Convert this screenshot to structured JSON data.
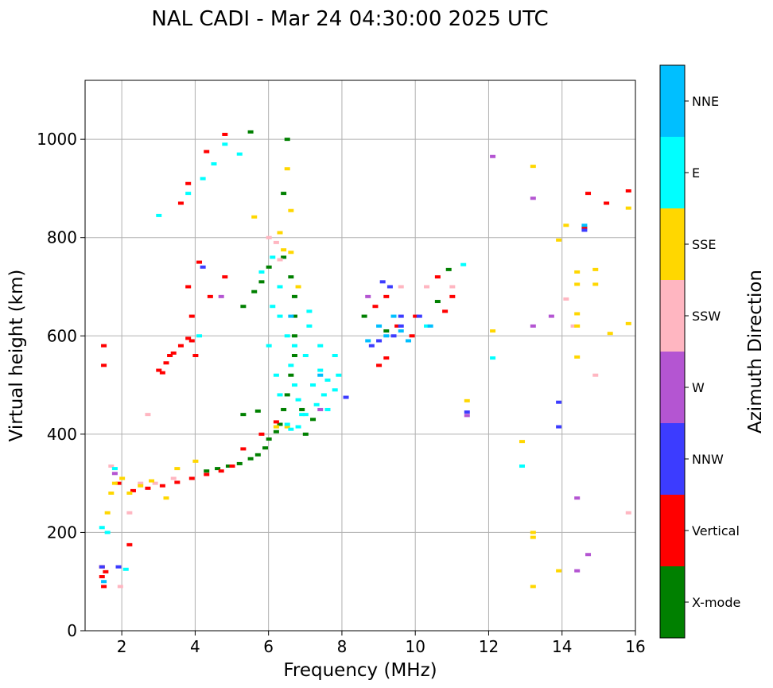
{
  "chart_data": {
    "type": "scatter",
    "title": "NAL CADI - Mar 24 04:30:00 2025 UTC",
    "xlabel": "Frequency (MHz)",
    "ylabel": "Virtual height (km)",
    "xlim": [
      1,
      16
    ],
    "ylim": [
      0,
      1120
    ],
    "xticks": [
      2,
      4,
      6,
      8,
      10,
      12,
      14,
      16
    ],
    "yticks": [
      0,
      200,
      400,
      600,
      800,
      1000
    ],
    "grid": true,
    "colorbar": {
      "label": "Azimuth Direction",
      "categories": [
        {
          "name": "X-mode",
          "color": "#008000"
        },
        {
          "name": "Vertical",
          "color": "#ff0000"
        },
        {
          "name": "NNW",
          "color": "#3c3cff"
        },
        {
          "name": "W",
          "color": "#b455d2"
        },
        {
          "name": "SSW",
          "color": "#ffb6c1"
        },
        {
          "name": "SSE",
          "color": "#ffd700"
        },
        {
          "name": "E",
          "color": "#00ffff"
        },
        {
          "name": "NNE",
          "color": "#00bfff"
        }
      ]
    },
    "series": [
      {
        "name": "X-mode",
        "color": "#008000",
        "points": [
          [
            4.3,
            325
          ],
          [
            4.6,
            330
          ],
          [
            4.9,
            335
          ],
          [
            5.2,
            340
          ],
          [
            5.5,
            350
          ],
          [
            5.7,
            358
          ],
          [
            5.9,
            372
          ],
          [
            6.0,
            390
          ],
          [
            6.2,
            405
          ],
          [
            6.3,
            420
          ],
          [
            6.4,
            450
          ],
          [
            6.5,
            480
          ],
          [
            6.6,
            520
          ],
          [
            6.7,
            560
          ],
          [
            6.7,
            600
          ],
          [
            6.7,
            640
          ],
          [
            6.7,
            680
          ],
          [
            6.6,
            720
          ],
          [
            6.4,
            760
          ],
          [
            6.5,
            1000
          ],
          [
            6.4,
            890
          ],
          [
            5.5,
            1015
          ],
          [
            6.9,
            450
          ],
          [
            7.0,
            400
          ],
          [
            7.2,
            430
          ],
          [
            5.3,
            660
          ],
          [
            5.6,
            690
          ],
          [
            5.8,
            710
          ],
          [
            6.0,
            740
          ],
          [
            10.6,
            670
          ],
          [
            10.9,
            735
          ],
          [
            9.2,
            610
          ],
          [
            8.6,
            640
          ],
          [
            5.7,
            447
          ],
          [
            5.3,
            440
          ]
        ]
      },
      {
        "name": "Vertical",
        "color": "#ff0000",
        "points": [
          [
            1.5,
            580
          ],
          [
            1.5,
            540
          ],
          [
            1.45,
            130
          ],
          [
            1.45,
            110
          ],
          [
            1.5,
            90
          ],
          [
            1.55,
            120
          ],
          [
            1.9,
            300
          ],
          [
            2.3,
            285
          ],
          [
            2.7,
            290
          ],
          [
            3.1,
            295
          ],
          [
            3.5,
            302
          ],
          [
            3.9,
            310
          ],
          [
            4.3,
            318
          ],
          [
            4.7,
            325
          ],
          [
            5.0,
            335
          ],
          [
            3.0,
            530
          ],
          [
            3.2,
            545
          ],
          [
            3.4,
            565
          ],
          [
            3.6,
            580
          ],
          [
            3.8,
            595
          ],
          [
            3.9,
            640
          ],
          [
            4.4,
            680
          ],
          [
            4.8,
            720
          ],
          [
            4.8,
            1010
          ],
          [
            4.3,
            975
          ],
          [
            3.8,
            910
          ],
          [
            3.6,
            870
          ],
          [
            3.8,
            700
          ],
          [
            4.1,
            750
          ],
          [
            3.9,
            590
          ],
          [
            3.3,
            560
          ],
          [
            3.1,
            525
          ],
          [
            9.0,
            540
          ],
          [
            9.2,
            555
          ],
          [
            8.9,
            660
          ],
          [
            9.2,
            680
          ],
          [
            9.5,
            620
          ],
          [
            9.9,
            600
          ],
          [
            10.0,
            640
          ],
          [
            10.6,
            720
          ],
          [
            10.8,
            650
          ],
          [
            11.0,
            680
          ],
          [
            14.6,
            820
          ],
          [
            14.7,
            890
          ],
          [
            15.2,
            870
          ],
          [
            15.8,
            895
          ],
          [
            2.2,
            175
          ],
          [
            4.0,
            560
          ],
          [
            5.3,
            370
          ],
          [
            5.8,
            400
          ],
          [
            6.2,
            425
          ]
        ]
      },
      {
        "name": "NNW",
        "color": "#3c3cff",
        "points": [
          [
            1.45,
            130
          ],
          [
            1.9,
            130
          ],
          [
            8.1,
            475
          ],
          [
            8.8,
            580
          ],
          [
            9.0,
            590
          ],
          [
            9.1,
            710
          ],
          [
            9.3,
            700
          ],
          [
            9.6,
            640
          ],
          [
            9.6,
            620
          ],
          [
            11.4,
            445
          ],
          [
            13.9,
            465
          ],
          [
            13.9,
            415
          ],
          [
            14.6,
            815
          ],
          [
            4.2,
            740
          ],
          [
            10.1,
            640
          ],
          [
            9.4,
            600
          ]
        ]
      },
      {
        "name": "W",
        "color": "#b455d2",
        "points": [
          [
            12.1,
            965
          ],
          [
            13.2,
            620
          ],
          [
            13.2,
            880
          ],
          [
            13.7,
            640
          ],
          [
            14.4,
            270
          ],
          [
            14.4,
            122
          ],
          [
            14.7,
            155
          ],
          [
            11.4,
            438
          ],
          [
            7.4,
            450
          ],
          [
            4.7,
            680
          ],
          [
            1.8,
            320
          ],
          [
            8.7,
            680
          ]
        ]
      },
      {
        "name": "SSW",
        "color": "#ffb6c1",
        "points": [
          [
            1.7,
            335
          ],
          [
            2.5,
            300
          ],
          [
            2.9,
            300
          ],
          [
            3.4,
            310
          ],
          [
            2.7,
            440
          ],
          [
            6.2,
            790
          ],
          [
            6.0,
            800
          ],
          [
            6.3,
            755
          ],
          [
            14.1,
            675
          ],
          [
            14.3,
            620
          ],
          [
            14.9,
            520
          ],
          [
            15.8,
            240
          ],
          [
            1.95,
            90
          ],
          [
            2.2,
            240
          ],
          [
            11.0,
            700
          ],
          [
            10.3,
            700
          ],
          [
            9.6,
            700
          ]
        ]
      },
      {
        "name": "SSE",
        "color": "#ffd700",
        "points": [
          [
            1.6,
            240
          ],
          [
            1.7,
            280
          ],
          [
            1.8,
            300
          ],
          [
            2.0,
            310
          ],
          [
            2.2,
            280
          ],
          [
            2.5,
            295
          ],
          [
            2.8,
            305
          ],
          [
            3.2,
            270
          ],
          [
            3.5,
            330
          ],
          [
            4.0,
            345
          ],
          [
            5.6,
            842
          ],
          [
            6.3,
            810
          ],
          [
            6.4,
            775
          ],
          [
            6.6,
            855
          ],
          [
            6.6,
            770
          ],
          [
            6.8,
            700
          ],
          [
            6.5,
            940
          ],
          [
            12.1,
            610
          ],
          [
            12.9,
            385
          ],
          [
            13.2,
            200
          ],
          [
            13.2,
            190
          ],
          [
            13.2,
            90
          ],
          [
            13.2,
            945
          ],
          [
            13.9,
            122
          ],
          [
            13.9,
            795
          ],
          [
            14.1,
            825
          ],
          [
            14.4,
            730
          ],
          [
            14.4,
            705
          ],
          [
            14.4,
            645
          ],
          [
            14.4,
            620
          ],
          [
            14.4,
            557
          ],
          [
            14.9,
            735
          ],
          [
            14.9,
            705
          ],
          [
            15.3,
            605
          ],
          [
            15.8,
            860
          ],
          [
            15.8,
            625
          ],
          [
            11.4,
            468
          ],
          [
            6.2,
            415
          ],
          [
            6.5,
            415
          ]
        ]
      },
      {
        "name": "E",
        "color": "#00ffff",
        "points": [
          [
            1.45,
            210
          ],
          [
            1.6,
            200
          ],
          [
            1.8,
            330
          ],
          [
            2.1,
            125
          ],
          [
            3.0,
            845
          ],
          [
            3.8,
            890
          ],
          [
            4.2,
            920
          ],
          [
            4.5,
            950
          ],
          [
            4.8,
            990
          ],
          [
            5.2,
            970
          ],
          [
            6.1,
            660
          ],
          [
            6.3,
            640
          ],
          [
            6.5,
            600
          ],
          [
            6.6,
            540
          ],
          [
            6.7,
            500
          ],
          [
            6.8,
            470
          ],
          [
            6.9,
            440
          ],
          [
            7.0,
            560
          ],
          [
            7.1,
            620
          ],
          [
            7.2,
            500
          ],
          [
            7.3,
            460
          ],
          [
            7.4,
            530
          ],
          [
            7.5,
            480
          ],
          [
            7.6,
            510
          ],
          [
            7.6,
            450
          ],
          [
            7.8,
            560
          ],
          [
            7.9,
            520
          ],
          [
            7.8,
            490
          ],
          [
            6.3,
            480
          ],
          [
            6.2,
            520
          ],
          [
            6.5,
            420
          ],
          [
            6.6,
            410
          ],
          [
            6.8,
            415
          ],
          [
            7.0,
            440
          ],
          [
            10.3,
            620
          ],
          [
            11.3,
            745
          ],
          [
            12.1,
            555
          ],
          [
            12.9,
            335
          ],
          [
            6.7,
            580
          ],
          [
            7.1,
            650
          ],
          [
            7.4,
            580
          ],
          [
            5.8,
            730
          ],
          [
            6.1,
            760
          ],
          [
            6.3,
            700
          ],
          [
            6.0,
            580
          ],
          [
            4.1,
            600
          ]
        ]
      },
      {
        "name": "NNE",
        "color": "#00bfff",
        "points": [
          [
            1.5,
            100
          ],
          [
            8.7,
            590
          ],
          [
            9.0,
            620
          ],
          [
            9.2,
            600
          ],
          [
            9.4,
            640
          ],
          [
            9.6,
            610
          ],
          [
            9.8,
            590
          ],
          [
            10.4,
            620
          ],
          [
            14.6,
            825
          ],
          [
            6.6,
            640
          ],
          [
            7.4,
            520
          ]
        ]
      }
    ]
  }
}
